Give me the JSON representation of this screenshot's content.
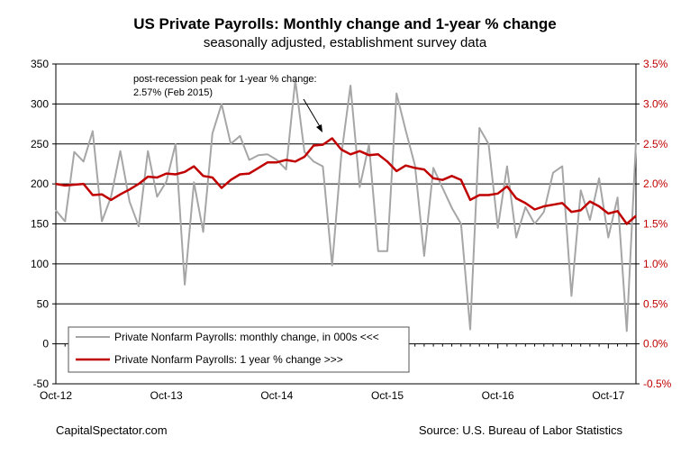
{
  "chart_data": {
    "type": "line",
    "title": "US Private Payrolls: Monthly change and 1-year % change",
    "subtitle": "seasonally adjusted, establishment survey data",
    "x_tick_labels": [
      "Oct-12",
      "Oct-13",
      "Oct-14",
      "Oct-15",
      "Oct-16",
      "Oct-17"
    ],
    "left_axis": {
      "ylim": [
        -50,
        350
      ],
      "ticks": [
        "-50",
        "0",
        "50",
        "100",
        "150",
        "200",
        "250",
        "300",
        "350"
      ]
    },
    "right_axis": {
      "ylim": [
        -0.5,
        3.5
      ],
      "ticks": [
        "-0.5%",
        "0.0%",
        "0.5%",
        "1.0%",
        "1.5%",
        "2.0%",
        "2.5%",
        "3.0%",
        "3.5%"
      ]
    },
    "grid": "horizontal",
    "legend_position": "bottom-left",
    "annotation": {
      "line1": "post-recession peak for 1-year % change:",
      "line2": "2.57% (Feb 2015)"
    },
    "series": [
      {
        "name": "Private Nonfarm Payrolls: monthly change, in 000s <<<",
        "axis": "left",
        "color": "#a6a6a6",
        "values": [
          167,
          153,
          240,
          228,
          266,
          153,
          184,
          241,
          178,
          147,
          241,
          184,
          203,
          250,
          74,
          202,
          140,
          263,
          300,
          250,
          260,
          230,
          236,
          237,
          230,
          218,
          330,
          240,
          228,
          222,
          98,
          236,
          323,
          196,
          249,
          116,
          116,
          313,
          267,
          223,
          110,
          220,
          195,
          170,
          150,
          18,
          270,
          250,
          145,
          222,
          133,
          171,
          150,
          165,
          214,
          222,
          60,
          192,
          155,
          207,
          133,
          183,
          16,
          252
        ]
      },
      {
        "name": "Private Nonfarm Payrolls:  1 year % change >>>",
        "axis": "right",
        "color": "#c00000",
        "values": [
          2.0,
          1.98,
          1.99,
          2.0,
          1.86,
          1.87,
          1.8,
          1.87,
          1.93,
          2.0,
          2.09,
          2.08,
          2.13,
          2.12,
          2.15,
          2.22,
          2.1,
          2.08,
          1.95,
          2.05,
          2.12,
          2.13,
          2.2,
          2.27,
          2.27,
          2.3,
          2.28,
          2.34,
          2.48,
          2.49,
          2.57,
          2.43,
          2.37,
          2.41,
          2.36,
          2.37,
          2.28,
          2.16,
          2.23,
          2.2,
          2.18,
          2.07,
          2.05,
          2.1,
          2.05,
          1.8,
          1.86,
          1.86,
          1.88,
          1.97,
          1.82,
          1.76,
          1.68,
          1.72,
          1.74,
          1.76,
          1.65,
          1.67,
          1.78,
          1.72,
          1.63,
          1.66,
          1.5,
          1.6
        ]
      }
    ]
  },
  "footer": {
    "left": "CapitalSpectator.com",
    "right": "Source: U.S. Bureau of Labor Statistics"
  }
}
